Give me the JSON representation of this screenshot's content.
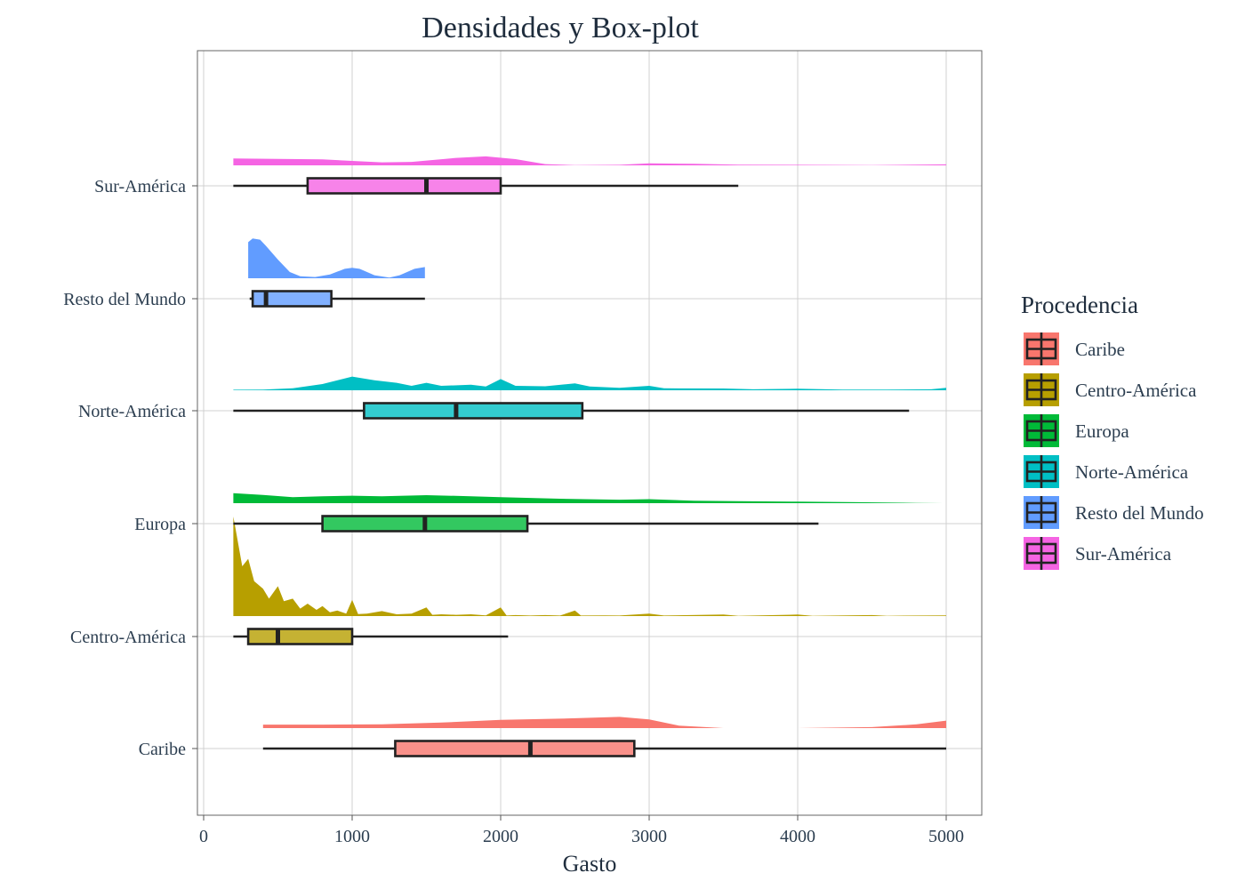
{
  "chart_data": {
    "type": "density-boxplot",
    "title": "Densidades y Box-plot",
    "xlabel": "Gasto",
    "ylabel": "",
    "xlim": [
      0,
      5000
    ],
    "xticks": [
      0,
      1000,
      2000,
      3000,
      4000,
      5000
    ],
    "grid": true,
    "legend": {
      "title": "Procedencia",
      "position": "right",
      "entries": [
        "Caribe",
        "Centro-América",
        "Europa",
        "Norte-América",
        "Resto del Mundo",
        "Sur-América"
      ]
    },
    "categories": [
      "Caribe",
      "Centro-América",
      "Europa",
      "Norte-América",
      "Resto del Mundo",
      "Sur-América"
    ],
    "series": [
      {
        "name": "Caribe",
        "color": "#F8766D",
        "box": {
          "whisker_low": 400,
          "q1": 1290,
          "median": 2200,
          "q3": 2900,
          "whisker_high": 5000
        },
        "density_range": [
          400,
          5000
        ],
        "density": [
          [
            400,
            0.14
          ],
          [
            800,
            0.14
          ],
          [
            1200,
            0.15
          ],
          [
            1600,
            0.22
          ],
          [
            2000,
            0.33
          ],
          [
            2400,
            0.38
          ],
          [
            2800,
            0.45
          ],
          [
            3000,
            0.35
          ],
          [
            3200,
            0.1
          ],
          [
            3500,
            0.0
          ],
          [
            4000,
            0.0
          ],
          [
            4500,
            0.04
          ],
          [
            4800,
            0.15
          ],
          [
            5000,
            0.3
          ]
        ]
      },
      {
        "name": "Centro-América",
        "color": "#B79F00",
        "box": {
          "whisker_low": 200,
          "q1": 300,
          "median": 500,
          "q3": 1000,
          "whisker_high": 2050
        },
        "density_range": [
          200,
          5000
        ],
        "density": [
          [
            200,
            4.0
          ],
          [
            230,
            3.0
          ],
          [
            260,
            2.0
          ],
          [
            300,
            2.3
          ],
          [
            340,
            1.4
          ],
          [
            400,
            1.1
          ],
          [
            440,
            0.7
          ],
          [
            500,
            1.2
          ],
          [
            540,
            0.6
          ],
          [
            600,
            0.7
          ],
          [
            650,
            0.3
          ],
          [
            700,
            0.5
          ],
          [
            760,
            0.25
          ],
          [
            800,
            0.4
          ],
          [
            850,
            0.15
          ],
          [
            900,
            0.22
          ],
          [
            960,
            0.1
          ],
          [
            1000,
            0.65
          ],
          [
            1040,
            0.08
          ],
          [
            1100,
            0.1
          ],
          [
            1200,
            0.2
          ],
          [
            1300,
            0.07
          ],
          [
            1400,
            0.1
          ],
          [
            1500,
            0.35
          ],
          [
            1540,
            0.05
          ],
          [
            1600,
            0.07
          ],
          [
            1700,
            0.05
          ],
          [
            1800,
            0.07
          ],
          [
            1900,
            0.03
          ],
          [
            2000,
            0.35
          ],
          [
            2040,
            0.02
          ],
          [
            2100,
            0.04
          ],
          [
            2200,
            0.02
          ],
          [
            2300,
            0.04
          ],
          [
            2400,
            0.02
          ],
          [
            2500,
            0.22
          ],
          [
            2540,
            0.02
          ],
          [
            2700,
            0.03
          ],
          [
            2800,
            0.02
          ],
          [
            3000,
            0.1
          ],
          [
            3100,
            0.02
          ],
          [
            3500,
            0.06
          ],
          [
            3600,
            0.01
          ],
          [
            4000,
            0.06
          ],
          [
            4100,
            0.01
          ],
          [
            4500,
            0.04
          ],
          [
            4600,
            0.01
          ],
          [
            5000,
            0.03
          ]
        ]
      },
      {
        "name": "Europa",
        "color": "#00BA38",
        "box": {
          "whisker_low": 200,
          "q1": 800,
          "median": 1490,
          "q3": 2180,
          "whisker_high": 4140
        },
        "density_range": [
          200,
          4980
        ],
        "density": [
          [
            200,
            0.4
          ],
          [
            400,
            0.33
          ],
          [
            600,
            0.24
          ],
          [
            800,
            0.28
          ],
          [
            1000,
            0.3
          ],
          [
            1200,
            0.28
          ],
          [
            1500,
            0.32
          ],
          [
            1800,
            0.28
          ],
          [
            2000,
            0.24
          ],
          [
            2400,
            0.18
          ],
          [
            2800,
            0.14
          ],
          [
            3000,
            0.16
          ],
          [
            3300,
            0.1
          ],
          [
            3600,
            0.08
          ],
          [
            4000,
            0.06
          ],
          [
            4400,
            0.04
          ],
          [
            4800,
            0.01
          ],
          [
            4980,
            0.0
          ]
        ]
      },
      {
        "name": "Norte-América",
        "color": "#00BFC4",
        "box": {
          "whisker_low": 200,
          "q1": 1080,
          "median": 1700,
          "q3": 2550,
          "whisker_high": 4750
        },
        "density_range": [
          200,
          5000
        ],
        "density": [
          [
            200,
            0.02
          ],
          [
            400,
            0.03
          ],
          [
            600,
            0.08
          ],
          [
            800,
            0.25
          ],
          [
            1000,
            0.55
          ],
          [
            1150,
            0.4
          ],
          [
            1300,
            0.3
          ],
          [
            1400,
            0.18
          ],
          [
            1500,
            0.3
          ],
          [
            1600,
            0.18
          ],
          [
            1800,
            0.22
          ],
          [
            1900,
            0.15
          ],
          [
            2000,
            0.45
          ],
          [
            2100,
            0.18
          ],
          [
            2300,
            0.16
          ],
          [
            2500,
            0.28
          ],
          [
            2600,
            0.15
          ],
          [
            2800,
            0.1
          ],
          [
            3000,
            0.18
          ],
          [
            3100,
            0.08
          ],
          [
            3500,
            0.07
          ],
          [
            3700,
            0.04
          ],
          [
            4000,
            0.06
          ],
          [
            4300,
            0.03
          ],
          [
            4600,
            0.03
          ],
          [
            4900,
            0.04
          ],
          [
            5000,
            0.1
          ]
        ]
      },
      {
        "name": "Resto del Mundo",
        "color": "#619CFF",
        "box": {
          "whisker_low": 310,
          "q1": 330,
          "median": 420,
          "q3": 860,
          "whisker_high": 1490
        },
        "density_range": [
          300,
          1490
        ],
        "density": [
          [
            300,
            1.45
          ],
          [
            330,
            1.6
          ],
          [
            380,
            1.55
          ],
          [
            420,
            1.3
          ],
          [
            500,
            0.75
          ],
          [
            580,
            0.25
          ],
          [
            650,
            0.08
          ],
          [
            750,
            0.05
          ],
          [
            850,
            0.15
          ],
          [
            950,
            0.38
          ],
          [
            1000,
            0.42
          ],
          [
            1050,
            0.38
          ],
          [
            1150,
            0.12
          ],
          [
            1250,
            0.03
          ],
          [
            1320,
            0.12
          ],
          [
            1420,
            0.38
          ],
          [
            1490,
            0.45
          ]
        ]
      },
      {
        "name": "Sur-América",
        "color": "#F564E3",
        "box": {
          "whisker_low": 200,
          "q1": 700,
          "median": 1500,
          "q3": 2000,
          "whisker_high": 3600
        },
        "density_range": [
          200,
          5000
        ],
        "density": [
          [
            200,
            0.28
          ],
          [
            500,
            0.26
          ],
          [
            800,
            0.24
          ],
          [
            1000,
            0.18
          ],
          [
            1200,
            0.12
          ],
          [
            1400,
            0.14
          ],
          [
            1700,
            0.3
          ],
          [
            1900,
            0.36
          ],
          [
            2100,
            0.25
          ],
          [
            2300,
            0.05
          ],
          [
            2500,
            0.01
          ],
          [
            2800,
            0.02
          ],
          [
            3000,
            0.08
          ],
          [
            3300,
            0.06
          ],
          [
            3600,
            0.03
          ],
          [
            4000,
            0.02
          ],
          [
            4500,
            0.01
          ],
          [
            5000,
            0.04
          ]
        ]
      }
    ]
  }
}
